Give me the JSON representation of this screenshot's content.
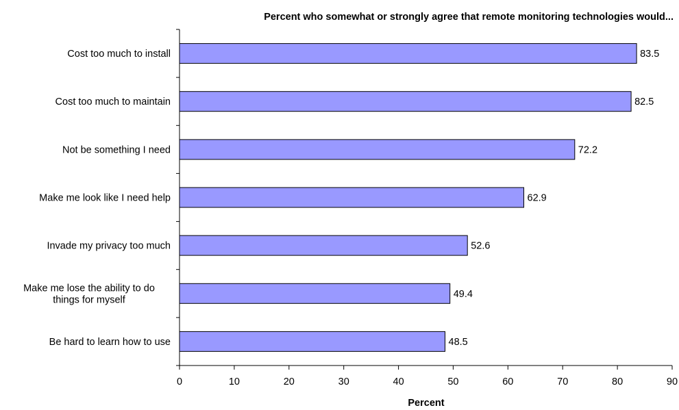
{
  "chart_data": {
    "type": "bar",
    "orientation": "horizontal",
    "title": "Percent who somewhat or strongly agree that remote monitoring technologies would...",
    "xlabel": "Percent",
    "ylabel": "",
    "xlim": [
      0,
      90
    ],
    "xticks": [
      0,
      10,
      20,
      30,
      40,
      50,
      60,
      70,
      80,
      90
    ],
    "grid": false,
    "legend": "none",
    "bar_color": "#9999ff",
    "bar_edge_color": "#000000",
    "categories": [
      [
        "Cost too much to install"
      ],
      [
        "Cost too much to maintain"
      ],
      [
        "Not be something I need"
      ],
      [
        "Make me look like I need help"
      ],
      [
        "Invade my privacy too much"
      ],
      [
        "Make me lose the ability to do",
        "things for myself"
      ],
      [
        "Be hard to learn how to use"
      ]
    ],
    "values": [
      83.5,
      82.5,
      72.2,
      62.9,
      52.6,
      49.4,
      48.5
    ],
    "value_labels": [
      "83.5",
      "82.5",
      "72.2",
      "62.9",
      "52.6",
      "49.4",
      "48.5"
    ]
  }
}
